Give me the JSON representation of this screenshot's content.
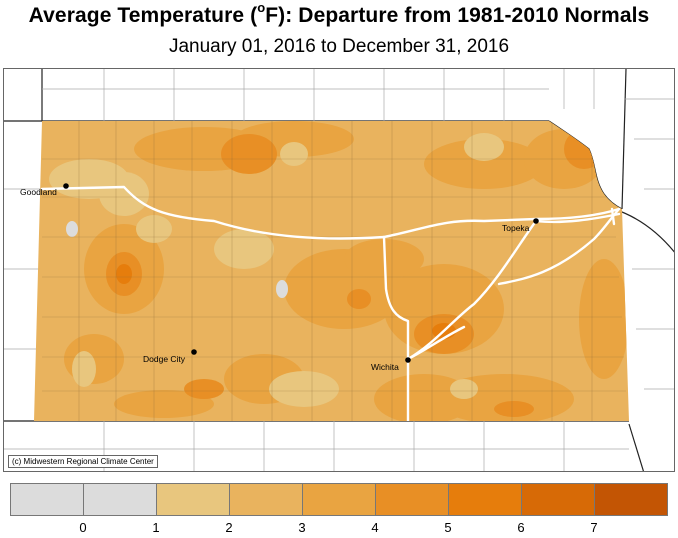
{
  "title_main": "Average Temperature (",
  "title_degree": "o",
  "title_rest": "F): Departure from 1981-2010 Normals",
  "subtitle": "January 01, 2016 to December 31, 2016",
  "credit": "(c) Midwestern Regional Climate Center",
  "cities": {
    "goodland": "Goodland",
    "dodge_city": "Dodge City",
    "wichita": "Wichita",
    "topeka": "Topeka"
  },
  "legend": {
    "colors": [
      "#dcdcdc",
      "#dcdcdc",
      "#e8c67e",
      "#e9b35e",
      "#e9a441",
      "#e88f25",
      "#e67d0c",
      "#d76a06",
      "#c35504"
    ],
    "tick_labels": [
      "0",
      "1",
      "2",
      "3",
      "4",
      "5",
      "6",
      "7"
    ]
  },
  "colors": {
    "base": "#e9b35e",
    "light": "#e8c67e",
    "mid": "#e9a441",
    "dark": "#e88f25",
    "darker": "#e67d0c",
    "gray": "#dcdcdc",
    "road": "#ffffff"
  }
}
